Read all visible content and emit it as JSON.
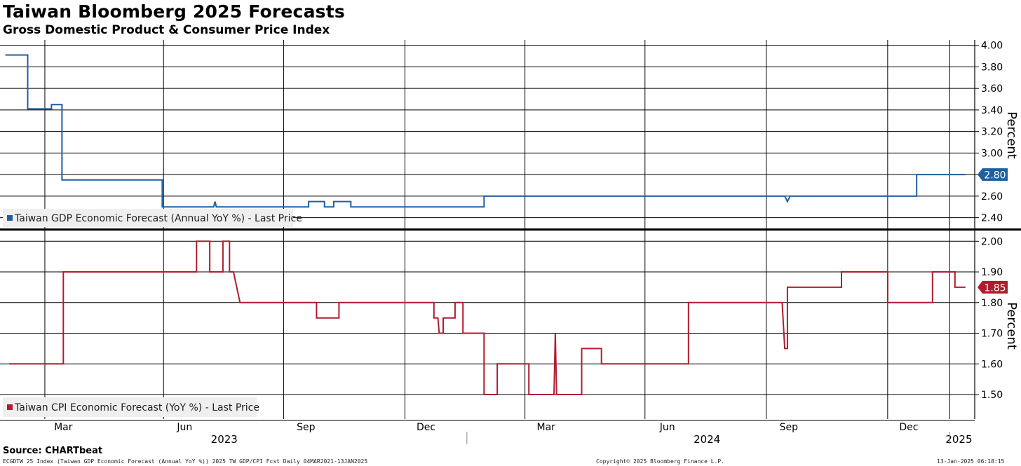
{
  "title": "Taiwan Bloomberg 2025 Forecasts",
  "subtitle": "Gross Domestic Product & Consumer Price Index",
  "source": "Source: CHARTbeat",
  "footer": {
    "left": "ECGDTW 25 Index (Taiwan GDP Economic Forecast (Annual YoY %)) 2025 TW GDP/CPI Fcst  Daily 04MAR2021-13JAN2025",
    "middle": "Copyright© 2025 Bloomberg Finance L.P.",
    "right": "13-Jan-2025 06:18:15"
  },
  "chart_data": [
    {
      "type": "line",
      "ylabel": "Percent",
      "ylim": [
        2.3,
        4.05
      ],
      "yticks": [
        "4.00",
        "3.80",
        "3.60",
        "3.40",
        "3.20",
        "3.00",
        "2.80",
        "2.60",
        "2.40"
      ],
      "grid": true,
      "legend_position": "bottom-left",
      "last_value_label": "2.80",
      "color": "#1f5fa0",
      "series": [
        {
          "name": "Taiwan GDP Economic Forecast (Annual YoY %) - Last Price",
          "points": [
            [
              "2023-01-16",
              3.91
            ],
            [
              "2023-02-02",
              3.91
            ],
            [
              "2023-02-02",
              3.41
            ],
            [
              "2023-02-20",
              3.41
            ],
            [
              "2023-02-20",
              3.45
            ],
            [
              "2023-02-28",
              3.45
            ],
            [
              "2023-02-28",
              2.75
            ],
            [
              "2023-05-15",
              2.75
            ],
            [
              "2023-05-15",
              2.5
            ],
            [
              "2023-06-23",
              2.5
            ],
            [
              "2023-06-24",
              2.55
            ],
            [
              "2023-06-25",
              2.5
            ],
            [
              "2023-09-03",
              2.5
            ],
            [
              "2023-09-03",
              2.55
            ],
            [
              "2023-09-15",
              2.55
            ],
            [
              "2023-09-15",
              2.5
            ],
            [
              "2023-09-22",
              2.5
            ],
            [
              "2023-09-22",
              2.55
            ],
            [
              "2023-10-05",
              2.55
            ],
            [
              "2023-10-05",
              2.5
            ],
            [
              "2024-01-14",
              2.5
            ],
            [
              "2024-01-14",
              2.6
            ],
            [
              "2024-08-29",
              2.6
            ],
            [
              "2024-08-31",
              2.55
            ],
            [
              "2024-09-02",
              2.6
            ],
            [
              "2024-12-07",
              2.6
            ],
            [
              "2024-12-07",
              2.8
            ],
            [
              "2025-01-13",
              2.8
            ]
          ]
        }
      ]
    },
    {
      "type": "line",
      "ylabel": "Percent",
      "ylim": [
        1.42,
        2.035
      ],
      "yticks": [
        "2.00",
        "1.90",
        "1.80",
        "1.70",
        "1.60",
        "1.50"
      ],
      "grid": true,
      "legend_position": "bottom-left",
      "last_value_label": "1.85",
      "color": "#b01c2e",
      "series": [
        {
          "name": "Taiwan CPI Economic Forecast (YoY %) - Last Price",
          "points": [
            [
              "2023-01-19",
              1.6
            ],
            [
              "2023-03-01",
              1.6
            ],
            [
              "2023-03-01",
              1.9
            ],
            [
              "2023-06-10",
              1.9
            ],
            [
              "2023-06-10",
              2.0
            ],
            [
              "2023-06-20",
              2.0
            ],
            [
              "2023-06-20",
              1.9
            ],
            [
              "2023-06-30",
              1.9
            ],
            [
              "2023-06-30",
              2.0
            ],
            [
              "2023-07-05",
              2.0
            ],
            [
              "2023-07-05",
              1.9
            ],
            [
              "2023-07-08",
              1.9
            ],
            [
              "2023-07-13",
              1.8
            ],
            [
              "2023-09-09",
              1.8
            ],
            [
              "2023-09-09",
              1.75
            ],
            [
              "2023-09-26",
              1.75
            ],
            [
              "2023-09-26",
              1.8
            ],
            [
              "2023-12-07",
              1.8
            ],
            [
              "2023-12-07",
              1.75
            ],
            [
              "2023-12-10",
              1.75
            ],
            [
              "2023-12-11",
              1.7
            ],
            [
              "2023-12-14",
              1.7
            ],
            [
              "2023-12-14",
              1.75
            ],
            [
              "2023-12-23",
              1.75
            ],
            [
              "2023-12-23",
              1.8
            ],
            [
              "2023-12-29",
              1.8
            ],
            [
              "2023-12-29",
              1.7
            ],
            [
              "2024-01-02",
              1.7
            ],
            [
              "2024-01-14",
              1.7
            ],
            [
              "2024-01-14",
              1.5
            ],
            [
              "2024-01-24",
              1.5
            ],
            [
              "2024-01-24",
              1.6
            ],
            [
              "2024-02-17",
              1.6
            ],
            [
              "2024-02-17",
              1.5
            ],
            [
              "2024-03-07",
              1.5
            ],
            [
              "2024-03-08",
              1.7
            ],
            [
              "2024-03-09",
              1.5
            ],
            [
              "2024-03-28",
              1.5
            ],
            [
              "2024-03-28",
              1.65
            ],
            [
              "2024-04-12",
              1.65
            ],
            [
              "2024-04-12",
              1.6
            ],
            [
              "2024-06-17",
              1.6
            ],
            [
              "2024-06-17",
              1.8
            ],
            [
              "2024-08-27",
              1.8
            ],
            [
              "2024-08-29",
              1.65
            ],
            [
              "2024-08-31",
              1.65
            ],
            [
              "2024-08-31",
              1.85
            ],
            [
              "2024-10-11",
              1.85
            ],
            [
              "2024-10-11",
              1.9
            ],
            [
              "2024-11-15",
              1.9
            ],
            [
              "2024-11-15",
              1.8
            ],
            [
              "2024-12-19",
              1.8
            ],
            [
              "2024-12-19",
              1.9
            ],
            [
              "2025-01-05",
              1.9
            ],
            [
              "2025-01-05",
              1.85
            ],
            [
              "2025-01-13",
              1.85
            ]
          ]
        }
      ]
    }
  ],
  "x_axis": {
    "months": [
      {
        "label": "Mar",
        "date": "2023-03-01"
      },
      {
        "label": "Jun",
        "date": "2023-06-01"
      },
      {
        "label": "Sep",
        "date": "2023-09-01"
      },
      {
        "label": "Dec",
        "date": "2023-12-01"
      },
      {
        "label": "Mar",
        "date": "2024-03-01"
      },
      {
        "label": "Jun",
        "date": "2024-06-01"
      },
      {
        "label": "Sep",
        "date": "2024-09-01"
      },
      {
        "label": "Dec",
        "date": "2024-12-01"
      }
    ],
    "years": [
      {
        "label": "2023",
        "date": "2023-07-01"
      },
      {
        "label": "2024",
        "date": "2024-07-01"
      },
      {
        "label": "2025",
        "date": "2025-01-08"
      }
    ],
    "year_separators": [
      "2024-01-01",
      "2025-01-01"
    ],
    "gridlines": [
      "2023-02-15",
      "2023-05-16",
      "2023-08-15",
      "2023-11-15",
      "2024-02-14",
      "2024-05-15",
      "2024-08-15",
      "2024-11-15",
      "2025-01-01"
    ]
  }
}
